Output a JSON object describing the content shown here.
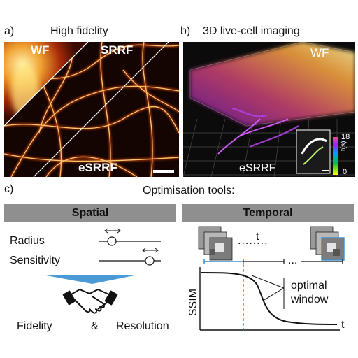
{
  "panel_a": {
    "label": "a)",
    "title": "High fidelity",
    "regions": [
      "WF",
      "SRRF",
      "eSRRF"
    ]
  },
  "panel_b": {
    "label": "b)",
    "title": "3D live-cell imaging",
    "regions": [
      "WF",
      "eSRRF"
    ],
    "colorbar": {
      "max": "18",
      "min": "0",
      "unit": "t(s)"
    }
  },
  "panel_c": {
    "label": "c)",
    "title": "Optimisation tools:",
    "spatial": {
      "header": "Spatial",
      "params": [
        "Radius",
        "Sensitivity"
      ],
      "outcome_left": "Fidelity",
      "outcome_join": "&",
      "outcome_right": "Resolution"
    },
    "temporal": {
      "header": "Temporal",
      "stack_label": "t",
      "stack_dots": "........",
      "ellipsis": "...",
      "ylabel": "SSIM",
      "xlabel": "t",
      "annotation_line1": "optimal",
      "annotation_line2": "window"
    }
  },
  "colors": {
    "header_gray": "#8f8f8f",
    "accent_blue": "#3a8fd0",
    "ssim_curve": "#111111"
  },
  "icons": [
    "handshake-icon",
    "double-arrow-icon",
    "funnel-arrow-icon"
  ]
}
